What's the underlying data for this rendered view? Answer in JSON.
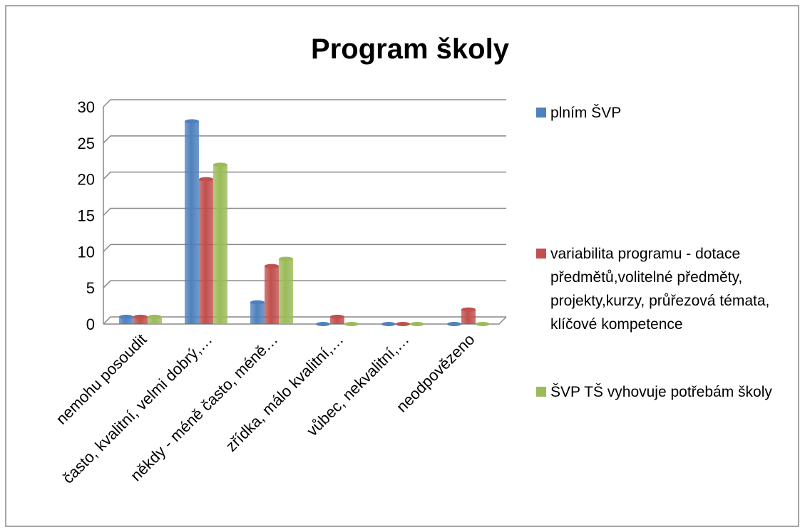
{
  "chart_data": {
    "type": "bar",
    "title": "Program školy",
    "categories": [
      "nemohu posoudit",
      "často, kvalitní, velmi dobrý,…",
      "někdy - méně často, méně…",
      "zřídka, málo kvalitní,…",
      "vůbec, nekvalitní,…",
      "neodpovězeno"
    ],
    "series": [
      {
        "name": "plním ŠVP",
        "color": "#4f81bd",
        "values": [
          1,
          28,
          3,
          0,
          0,
          0
        ]
      },
      {
        "name": "variabilita programu - dotace předmětů,volitelné předměty, projekty,kurzy, průřezová témata, klíčové kompetence",
        "color": "#c0504d",
        "values": [
          1,
          20,
          8,
          1,
          0,
          2
        ]
      },
      {
        "name": "ŠVP TŠ vyhovuje potřebám školy",
        "color": "#9bbb59",
        "values": [
          1,
          22,
          9,
          0,
          0,
          0
        ]
      }
    ],
    "ylim": [
      0,
      30
    ],
    "yticks": [
      0,
      5,
      10,
      15,
      20,
      25,
      30
    ],
    "grid": true
  }
}
